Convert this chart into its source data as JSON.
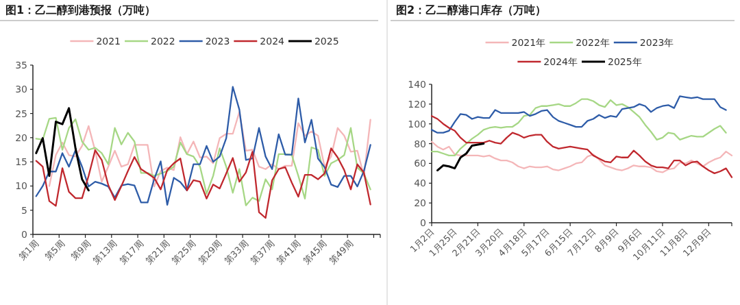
{
  "chart_data": [
    {
      "type": "line",
      "title": "图1：乙二醇到港预报（万吨）",
      "categories": [
        "第1周",
        null,
        null,
        null,
        "第5周",
        null,
        null,
        null,
        "第9周",
        null,
        null,
        null,
        "第13周",
        null,
        null,
        null,
        "第17周",
        null,
        null,
        null,
        "第21周",
        null,
        null,
        null,
        "第25周",
        null,
        null,
        null,
        "第29周",
        null,
        null,
        null,
        "第33周",
        null,
        null,
        null,
        "第37周",
        null,
        null,
        null,
        "第41周",
        null,
        null,
        null,
        "第45周",
        null,
        null,
        null,
        "第49周",
        null,
        null,
        null,
        null
      ],
      "ylim": [
        0,
        35
      ],
      "yticks": [
        0,
        5,
        10,
        15,
        20,
        25,
        30,
        35
      ],
      "legend": "top",
      "grid": false,
      "series": [
        {
          "name": "2021",
          "color": "#f4b6b8",
          "values": [
            null,
            null,
            10,
            16.4,
            19,
            16.4,
            16.1,
            18.3,
            22.4,
            17.3,
            10.9,
            14,
            17.3,
            14,
            14.5,
            18.5,
            18.5,
            18.5,
            9.9,
            13.1,
            13.8,
            13.3,
            20.1,
            16.6,
            19.2,
            15.9,
            16.1,
            14.7,
            19.9,
            20.8,
            20.8,
            25.3,
            17.3,
            17.5,
            14,
            13.5,
            14.5,
            13.5,
            14.2,
            14.2,
            23,
            20.4,
            21.3,
            20.4,
            14,
            16.1,
            22,
            20.4,
            17.1,
            17.3,
            12.1,
            23.7,
            null
          ]
        },
        {
          "name": "2022",
          "color": "#a6d785",
          "values": [
            19.8,
            19.6,
            23.9,
            24.1,
            17.5,
            22,
            23.8,
            19.2,
            17.5,
            17.9,
            16.8,
            14.5,
            22,
            18.6,
            21,
            19.2,
            12.7,
            12.7,
            12.1,
            12.6,
            13.1,
            14,
            19,
            16.6,
            16.1,
            14,
            8.4,
            12.1,
            17.8,
            14,
            8.6,
            13.5,
            6,
            7.6,
            6.9,
            11.4,
            9.3,
            16.6,
            16.6,
            16.4,
            12.1,
            7.4,
            18,
            17.5,
            12.1,
            14.7,
            15.4,
            16.4,
            22,
            13.8,
            12.6,
            9.3,
            null
          ]
        },
        {
          "name": "2023",
          "color": "#2e5ca8",
          "values": [
            7.9,
            10,
            13,
            13,
            16.8,
            14,
            17.4,
            14,
            9.9,
            10.9,
            10.5,
            9.9,
            7.6,
            10.1,
            10.4,
            10.1,
            6.6,
            6.6,
            11.4,
            15.1,
            6.1,
            11.7,
            10.8,
            9.1,
            14.5,
            14.5,
            18.3,
            15,
            16.1,
            19.9,
            30.5,
            25.8,
            15.4,
            15.7,
            22,
            16.1,
            13.5,
            20.7,
            16.5,
            16.5,
            28.1,
            19,
            23.7,
            15.7,
            13.9,
            10.3,
            9.8,
            12.1,
            12.1,
            9.9,
            13.1,
            18.5,
            null
          ]
        },
        {
          "name": "2024",
          "color": "#c0282e",
          "values": [
            15.2,
            14,
            6.9,
            5.9,
            13.7,
            8.8,
            7.5,
            7.5,
            12.1,
            17.4,
            15.4,
            10.2,
            7.1,
            10,
            13.1,
            16,
            13.5,
            12.6,
            11.7,
            9.3,
            13.3,
            14.7,
            15.7,
            9.1,
            11.2,
            10.9,
            7.4,
            10.3,
            9.5,
            12.6,
            15.8,
            10.9,
            12.8,
            17.1,
            4.6,
            3.4,
            11.2,
            13.5,
            13.9,
            10.7,
            7.8,
            12.3,
            12.3,
            11.4,
            12.6,
            17.8,
            15.9,
            13.3,
            9.3,
            14.5,
            12.8,
            6.2,
            null
          ]
        },
        {
          "name": "2025",
          "color": "#000000",
          "values": [
            16.8,
            19.9,
            12.1,
            23.3,
            22.8,
            26.1,
            17.8,
            11.4,
            9.1,
            null,
            null,
            null,
            null,
            null,
            null,
            null,
            null,
            null,
            null,
            null,
            null,
            null,
            null,
            null,
            null,
            null,
            null,
            null,
            null,
            null,
            null,
            null,
            null,
            null,
            null,
            null,
            null,
            null,
            null,
            null,
            null,
            null,
            null,
            null,
            null,
            null,
            null,
            null,
            null,
            null,
            null,
            null,
            null
          ]
        }
      ]
    },
    {
      "type": "line",
      "title": "图2：乙二醇港口库存（万吨）",
      "categories": [
        "1月2日",
        null,
        null,
        null,
        "1月25日",
        null,
        null,
        null,
        "2月21日",
        null,
        null,
        null,
        "3月20日",
        null,
        null,
        null,
        "4月18日",
        null,
        null,
        null,
        "5月17日",
        null,
        null,
        null,
        "6月15日",
        null,
        null,
        null,
        "7月12日",
        null,
        null,
        null,
        "8月9日",
        null,
        null,
        null,
        "9月6日",
        null,
        null,
        null,
        "10月11日",
        null,
        null,
        null,
        "11月8日",
        null,
        null,
        null,
        "12月9日",
        null,
        null,
        null,
        null
      ],
      "ylim": [
        0,
        140
      ],
      "yticks": [
        0,
        20,
        40,
        60,
        80,
        100,
        120,
        140
      ],
      "legend": "top",
      "grid": false,
      "series": [
        {
          "name": "2021年",
          "color": "#f4b6b8",
          "values": [
            82,
            77,
            74,
            77,
            69,
            68,
            68,
            68,
            68,
            67,
            68,
            65,
            63,
            63,
            61,
            57,
            55,
            57,
            56,
            56,
            57,
            54,
            53,
            55,
            57,
            60,
            61,
            67,
            69,
            64,
            58,
            56,
            54,
            53,
            55,
            58,
            57,
            57,
            56,
            52,
            51,
            54,
            55,
            61,
            60,
            63,
            60,
            57,
            61,
            64,
            66,
            72,
            68
          ]
        },
        {
          "name": "2022年",
          "color": "#a6d785",
          "values": [
            72,
            72,
            70,
            68,
            68,
            75,
            80,
            85,
            89,
            94,
            96,
            97,
            96,
            97,
            97,
            101,
            108,
            109,
            116,
            118,
            118,
            119,
            120,
            118,
            118,
            121,
            125,
            125,
            123,
            119,
            117,
            124,
            119,
            120,
            117,
            112,
            107,
            99,
            92,
            84,
            86,
            91,
            90,
            84,
            86,
            88,
            87,
            87,
            91,
            95,
            98,
            91,
            null
          ]
        },
        {
          "name": "2023年",
          "color": "#2e5ca8",
          "values": [
            94,
            91,
            91,
            93,
            102,
            110,
            109,
            105,
            107,
            106,
            106,
            114,
            111,
            111,
            111,
            111,
            112,
            108,
            110,
            113,
            114,
            107,
            103,
            101,
            99,
            97,
            97,
            103,
            105,
            109,
            106,
            108,
            107,
            115,
            116,
            117,
            120,
            118,
            112,
            116,
            118,
            119,
            116,
            128,
            127,
            126,
            127,
            125,
            125,
            125,
            117,
            114,
            null
          ]
        },
        {
          "name": "2024年",
          "color": "#c0282e",
          "values": [
            108,
            105,
            100,
            96,
            93,
            86,
            81,
            81,
            81,
            81,
            83,
            81,
            80,
            86,
            91,
            89,
            86,
            88,
            89,
            89,
            82,
            77,
            75,
            76,
            77,
            76,
            75,
            74,
            68,
            65,
            62,
            61,
            67,
            66,
            66,
            73,
            68,
            62,
            58,
            56,
            56,
            55,
            63,
            63,
            58,
            61,
            62,
            57,
            53,
            50,
            52,
            55,
            46
          ]
        },
        {
          "name": "2025年",
          "color": "#000000",
          "values": [
            null,
            53,
            58,
            57,
            55,
            66,
            70,
            78,
            79,
            80,
            null,
            null,
            null,
            null,
            null,
            null,
            null,
            null,
            null,
            null,
            null,
            null,
            null,
            null,
            null,
            null,
            null,
            null,
            null,
            null,
            null,
            null,
            null,
            null,
            null,
            null,
            null,
            null,
            null,
            null,
            null,
            null,
            null,
            null,
            null,
            null,
            null,
            null,
            null,
            null,
            null,
            null,
            null
          ]
        }
      ]
    }
  ]
}
